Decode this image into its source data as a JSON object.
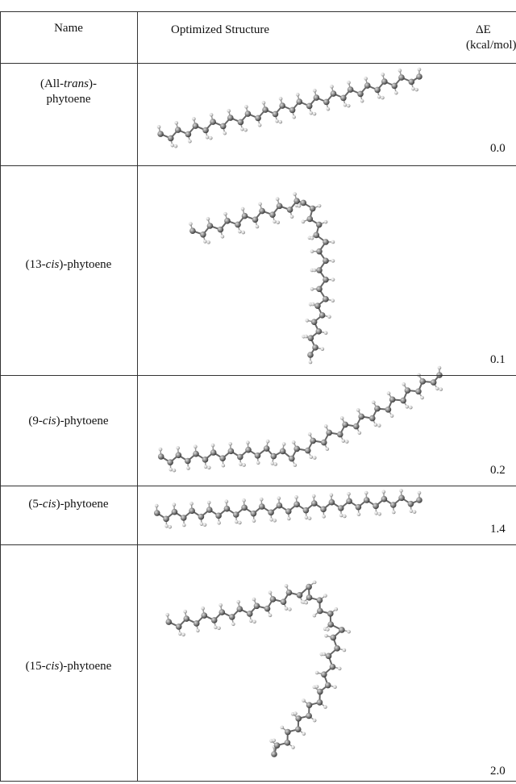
{
  "table": {
    "header": {
      "name": "Name",
      "structure": "Optimized Structure",
      "energy": "ΔE",
      "unit": "(kcal/mol)"
    },
    "rows": [
      {
        "before": "(All-",
        "italic": "trans",
        "after": ")-",
        "line2": "phytoene",
        "energy": "0.0"
      },
      {
        "before": "(13-",
        "italic": "cis",
        "after": ")-phytoene",
        "energy": "0.1"
      },
      {
        "before": "(9-",
        "italic": "cis",
        "after": ")-phytoene",
        "energy": "0.2"
      },
      {
        "before": "(5-",
        "italic": "cis",
        "after": ")-phytoene",
        "energy": "1.4"
      },
      {
        "before": "(15-",
        "italic": "cis",
        "after": ")-phytoene",
        "energy": "2.0"
      }
    ]
  }
}
